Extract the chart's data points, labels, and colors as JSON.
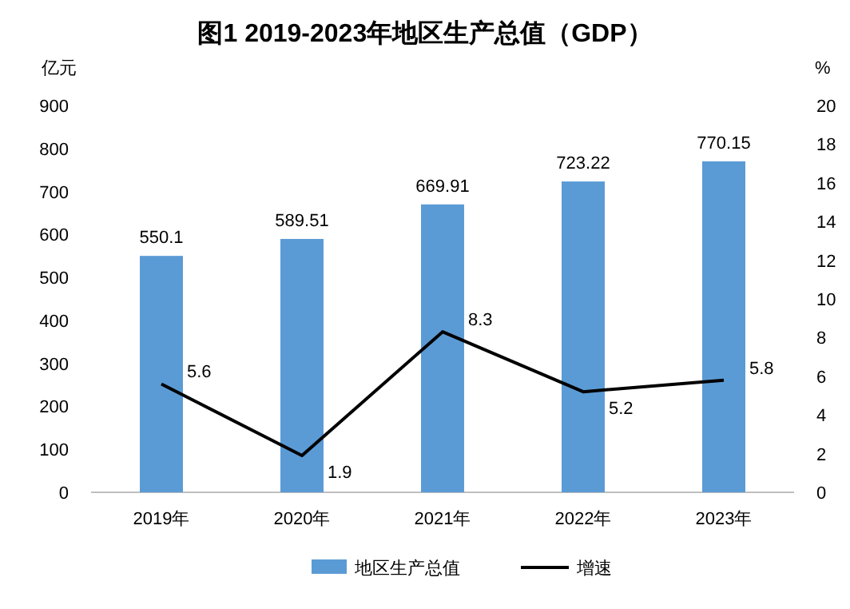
{
  "chart_data": {
    "type": "bar",
    "title": "图1 2019-2023年地区生产总值（GDP）",
    "ylabel": "亿元",
    "y2label": "%",
    "categories": [
      "2019年",
      "2020年",
      "2021年",
      "2022年",
      "2023年"
    ],
    "series": [
      {
        "name": "地区生产总值",
        "color": "#5b9bd5",
        "values": [
          550.1,
          589.51,
          669.91,
          723.22,
          770.15
        ]
      },
      {
        "name": "增速",
        "type": "line",
        "axis": "y2",
        "color": "#000000",
        "values": [
          5.6,
          1.9,
          8.3,
          5.2,
          5.8
        ]
      }
    ],
    "ylim": [
      0,
      900
    ],
    "yticks": [
      0,
      100,
      200,
      300,
      400,
      500,
      600,
      700,
      800,
      900
    ],
    "y2lim": [
      0,
      20
    ],
    "y2ticks": [
      0,
      2,
      4,
      6,
      8,
      10,
      12,
      14,
      16,
      18,
      20
    ],
    "data_labels": true,
    "legend": "bottom"
  }
}
